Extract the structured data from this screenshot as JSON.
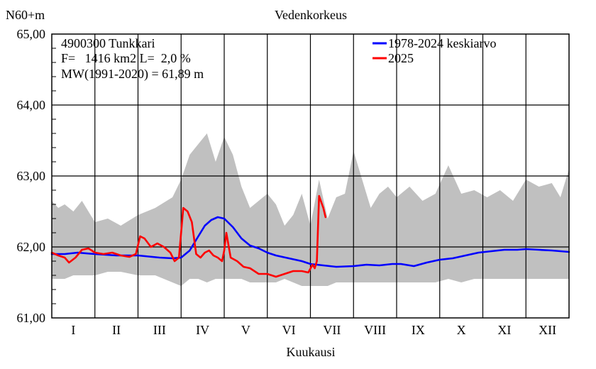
{
  "chart_data": {
    "type": "line",
    "title": "Vedenkorkeus",
    "ylabel": "N60+m",
    "xlabel": "Kuukausi",
    "ylim": [
      61.0,
      65.0
    ],
    "xlim": [
      0,
      12
    ],
    "y_ticks": [
      "61,00",
      "62,00",
      "63,00",
      "64,00",
      "65,00"
    ],
    "y_tick_values": [
      61,
      62,
      63,
      64,
      65
    ],
    "months": [
      "I",
      "II",
      "III",
      "IV",
      "V",
      "VI",
      "VII",
      "VIII",
      "IX",
      "X",
      "XI",
      "XII"
    ],
    "info": {
      "station": "4900300 Tunkkari",
      "area": "F=   1416 km2 L=  2,0 %",
      "mw": "MW(1991-2020) = 61,89 m"
    },
    "legend_position": "top-right",
    "grid": true,
    "band": {
      "color": "#c0c0c0",
      "x": [
        0.0,
        0.15,
        0.3,
        0.5,
        0.7,
        1.0,
        1.3,
        1.6,
        2.0,
        2.4,
        2.8,
        3.0,
        3.2,
        3.4,
        3.6,
        3.8,
        4.0,
        4.2,
        4.4,
        4.6,
        4.8,
        5.0,
        5.2,
        5.4,
        5.6,
        5.8,
        6.0,
        6.2,
        6.4,
        6.6,
        6.8,
        7.0,
        7.2,
        7.4,
        7.6,
        7.8,
        8.0,
        8.3,
        8.6,
        8.9,
        9.2,
        9.5,
        9.8,
        10.1,
        10.4,
        10.7,
        11.0,
        11.3,
        11.6,
        11.8,
        12.0
      ],
      "high": [
        62.65,
        62.55,
        62.6,
        62.5,
        62.65,
        62.35,
        62.4,
        62.3,
        62.45,
        62.55,
        62.7,
        62.95,
        63.3,
        63.45,
        63.6,
        63.2,
        63.55,
        63.3,
        62.85,
        62.55,
        62.65,
        62.75,
        62.6,
        62.3,
        62.45,
        62.75,
        62.3,
        62.95,
        62.4,
        62.7,
        62.75,
        63.35,
        62.95,
        62.55,
        62.75,
        62.85,
        62.7,
        62.85,
        62.65,
        62.75,
        63.15,
        62.75,
        62.8,
        62.7,
        62.8,
        62.65,
        62.95,
        62.85,
        62.9,
        62.7,
        63.1
      ],
      "low": [
        61.55,
        61.55,
        61.55,
        61.6,
        61.6,
        61.6,
        61.65,
        61.65,
        61.6,
        61.6,
        61.5,
        61.45,
        61.55,
        61.55,
        61.5,
        61.55,
        61.55,
        61.55,
        61.55,
        61.5,
        61.5,
        61.5,
        61.5,
        61.55,
        61.5,
        61.45,
        61.45,
        61.45,
        61.45,
        61.5,
        61.5,
        61.5,
        61.5,
        61.5,
        61.5,
        61.5,
        61.5,
        61.5,
        61.5,
        61.5,
        61.55,
        61.5,
        61.55,
        61.55,
        61.55,
        61.55,
        61.55,
        61.55,
        61.55,
        61.55,
        61.55
      ]
    },
    "series": [
      {
        "name": "1978-2024 keskiarvo",
        "color": "#0000ff",
        "x": [
          0.0,
          0.3,
          0.6,
          1.0,
          1.5,
          2.0,
          2.5,
          2.8,
          3.0,
          3.2,
          3.4,
          3.55,
          3.7,
          3.85,
          4.0,
          4.2,
          4.4,
          4.6,
          4.8,
          5.0,
          5.2,
          5.5,
          5.8,
          6.0,
          6.3,
          6.6,
          7.0,
          7.3,
          7.6,
          7.9,
          8.1,
          8.4,
          8.7,
          9.0,
          9.3,
          9.6,
          9.9,
          10.2,
          10.5,
          10.8,
          11.0,
          11.3,
          11.6,
          12.0
        ],
        "y": [
          61.9,
          61.9,
          61.92,
          61.9,
          61.88,
          61.88,
          61.85,
          61.84,
          61.85,
          61.95,
          62.15,
          62.3,
          62.38,
          62.42,
          62.4,
          62.28,
          62.12,
          62.02,
          61.98,
          61.92,
          61.88,
          61.84,
          61.8,
          61.76,
          61.74,
          61.72,
          61.73,
          61.75,
          61.74,
          61.76,
          61.76,
          61.73,
          61.78,
          61.82,
          61.84,
          61.88,
          61.92,
          61.94,
          61.96,
          61.96,
          61.97,
          61.96,
          61.95,
          61.93
        ]
      },
      {
        "name": "2025",
        "color": "#ff0000",
        "x": [
          0.0,
          0.15,
          0.3,
          0.4,
          0.55,
          0.7,
          0.85,
          1.0,
          1.2,
          1.4,
          1.6,
          1.8,
          1.95,
          2.05,
          2.15,
          2.3,
          2.45,
          2.6,
          2.75,
          2.85,
          2.95,
          3.05,
          3.15,
          3.25,
          3.35,
          3.45,
          3.55,
          3.65,
          3.75,
          3.85,
          3.95,
          4.0,
          4.05,
          4.15,
          4.3,
          4.45,
          4.6,
          4.8,
          5.0,
          5.2,
          5.4,
          5.6,
          5.8,
          5.95,
          6.05,
          6.1,
          6.15,
          6.2,
          6.3,
          6.35
        ],
        "y": [
          61.92,
          61.88,
          61.85,
          61.78,
          61.85,
          61.96,
          61.98,
          61.92,
          61.9,
          61.92,
          61.88,
          61.86,
          61.9,
          62.15,
          62.12,
          62.0,
          62.05,
          62.0,
          61.92,
          61.8,
          61.85,
          62.55,
          62.5,
          62.35,
          61.9,
          61.85,
          61.92,
          61.95,
          61.88,
          61.85,
          61.8,
          61.95,
          62.2,
          61.85,
          61.8,
          61.72,
          61.7,
          61.62,
          61.62,
          61.58,
          61.62,
          61.66,
          61.66,
          61.64,
          61.75,
          61.7,
          61.8,
          62.72,
          62.55,
          62.42
        ]
      }
    ]
  }
}
